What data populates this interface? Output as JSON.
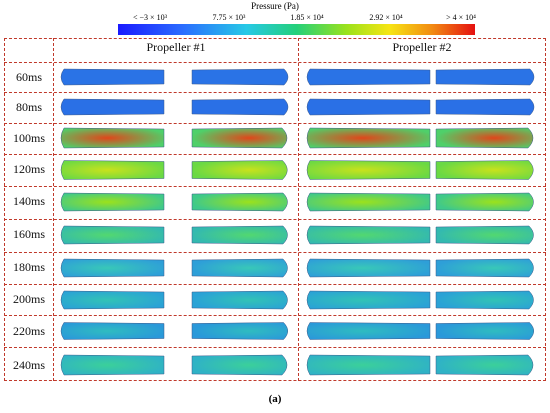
{
  "colorbar": {
    "title": "Pressure (Pa)",
    "ticks": [
      "< −3 × 10³",
      "7.75 × 10³",
      "1.85 × 10⁴",
      "2.92 × 10⁴",
      "> 4 × 10⁴"
    ],
    "colors": [
      "#1a1aff",
      "#2b6cff",
      "#27c9e6",
      "#24d07a",
      "#9be21c",
      "#f7e514",
      "#f28a12",
      "#e51010"
    ]
  },
  "propellers": [
    "Propeller #1",
    "Propeller #2"
  ],
  "times": [
    "60ms",
    "80ms",
    "100ms",
    "120ms",
    "140ms",
    "160ms",
    "180ms",
    "200ms",
    "220ms",
    "240ms"
  ],
  "blade_fields": [
    {
      "base": "#2a73e6",
      "hot": null
    },
    {
      "base": "#2a70e6",
      "hot": null
    },
    {
      "base": "#4fd06a",
      "hot": "#e0461a"
    },
    {
      "base": "#6ad944",
      "hot": "#c8e21c"
    },
    {
      "base": "#3fc98a",
      "hot": "#9be21c"
    },
    {
      "base": "#33b9b0",
      "hot": "#52d870"
    },
    {
      "base": "#2e9fd8",
      "hot": "#38c8b8"
    },
    {
      "base": "#2aa2d6",
      "hot": "#32c3b6"
    },
    {
      "base": "#2a98da",
      "hot": "#2fbcc0"
    },
    {
      "base": "#2fb2c6",
      "hot": "#3bd09a"
    }
  ],
  "caption": "(a)"
}
